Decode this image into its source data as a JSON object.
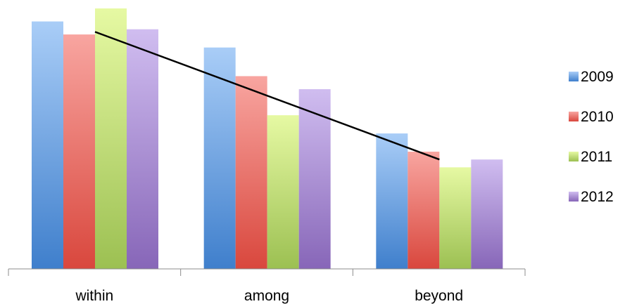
{
  "chart_data": {
    "type": "bar",
    "title": "",
    "xlabel": "",
    "ylabel": "",
    "categories": [
      "within",
      "among",
      "beyond"
    ],
    "ylim": [
      0,
      100
    ],
    "series": [
      {
        "name": "2009",
        "values": [
          95,
          85,
          52
        ],
        "color": "#5b9bd5",
        "light": "#a9cdf7",
        "dark": "#3f7fcc"
      },
      {
        "name": "2010",
        "values": [
          90,
          74,
          45
        ],
        "color": "#e06666",
        "light": "#f8a5a0",
        "dark": "#d9473d"
      },
      {
        "name": "2011",
        "values": [
          100,
          59,
          39
        ],
        "color": "#b5d56a",
        "light": "#e6f9a3",
        "dark": "#9cc052"
      },
      {
        "name": "2012",
        "values": [
          92,
          69,
          42
        ],
        "color": "#a086c8",
        "light": "#d0bdf0",
        "dark": "#8766b8"
      }
    ],
    "trendline": {
      "from": {
        "category": "within",
        "value": 91
      },
      "to": {
        "category": "beyond",
        "value": 42
      },
      "color": "#000000"
    },
    "legend": {
      "position": "right"
    },
    "grid": false,
    "axes": {
      "y_visible": false
    }
  }
}
